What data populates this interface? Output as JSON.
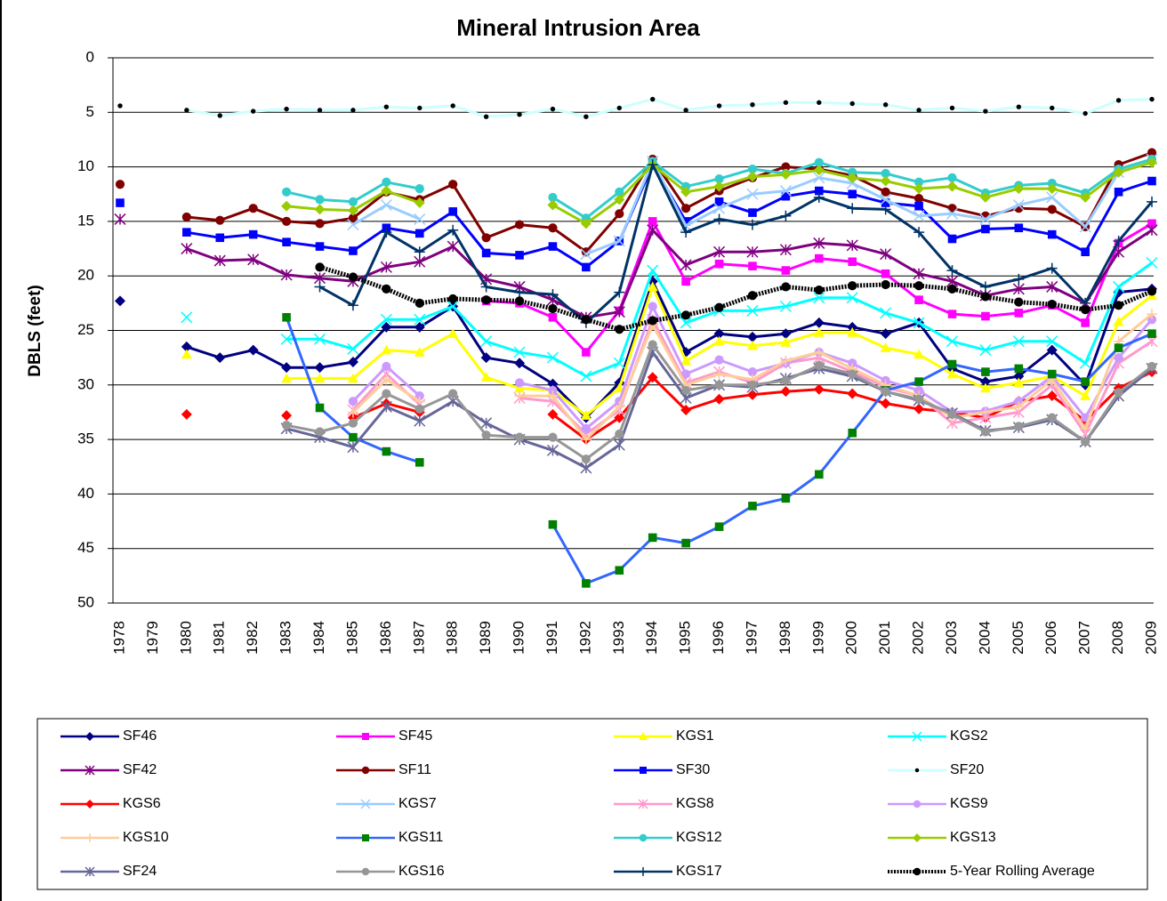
{
  "chart_data": {
    "type": "line",
    "title": "Mineral Intrusion Area",
    "y_label": "DBLS (feet)",
    "categories": [
      "1978",
      "1979",
      "1980",
      "1981",
      "1982",
      "1983",
      "1984",
      "1985",
      "1986",
      "1987",
      "1988",
      "1989",
      "1990",
      "1991",
      "1992",
      "1993",
      "1994",
      "1995",
      "1996",
      "1997",
      "1998",
      "1999",
      "2000",
      "2001",
      "2002",
      "2003",
      "2004",
      "2005",
      "2006",
      "2007",
      "2008",
      "2009"
    ],
    "ylim": [
      0,
      50
    ],
    "y_inverted": true,
    "yticks": [
      0,
      5,
      10,
      15,
      20,
      25,
      30,
      35,
      40,
      45,
      50
    ],
    "grid": true,
    "legend": "bottom",
    "series": [
      {
        "name": "SF46",
        "color": "#000080",
        "marker": "diamond",
        "values": [
          22.3,
          null,
          26.5,
          27.5,
          26.8,
          28.4,
          28.4,
          27.9,
          24.7,
          24.7,
          22.8,
          27.5,
          28.0,
          29.9,
          33.0,
          29.8,
          20.5,
          27.0,
          25.3,
          25.6,
          25.3,
          24.3,
          24.7,
          25.3,
          24.3,
          28.5,
          29.7,
          29.2,
          26.8,
          30.0,
          21.5,
          21.2
        ]
      },
      {
        "name": "SF45",
        "color": "#ff00ff",
        "marker": "square",
        "values": [
          null,
          null,
          null,
          null,
          null,
          null,
          null,
          null,
          null,
          null,
          null,
          22.3,
          22.5,
          23.8,
          27.0,
          23.2,
          15.0,
          20.5,
          18.9,
          19.1,
          19.5,
          18.4,
          18.7,
          19.8,
          22.2,
          23.5,
          23.7,
          23.4,
          22.7,
          24.3,
          17.0,
          15.2
        ]
      },
      {
        "name": "KGS1",
        "color": "#ffff00",
        "marker": "triangle",
        "values": [
          null,
          null,
          27.2,
          null,
          null,
          29.4,
          29.4,
          29.4,
          26.8,
          27.0,
          25.3,
          29.3,
          30.3,
          30.5,
          32.8,
          30.3,
          21.0,
          27.8,
          26.0,
          26.4,
          26.1,
          25.2,
          25.2,
          26.6,
          27.2,
          29.0,
          30.3,
          29.8,
          29.2,
          31.0,
          24.2,
          21.8
        ]
      },
      {
        "name": "KGS2",
        "color": "#00ffff",
        "marker": "x",
        "values": [
          null,
          null,
          23.8,
          null,
          null,
          25.8,
          25.8,
          26.7,
          24.0,
          24.0,
          22.8,
          26.0,
          27.0,
          27.5,
          29.2,
          28.0,
          19.5,
          24.3,
          23.2,
          23.2,
          22.8,
          22.0,
          22.0,
          23.4,
          24.3,
          26.0,
          26.8,
          26.0,
          26.0,
          28.0,
          21.0,
          18.8
        ]
      },
      {
        "name": "SF42",
        "color": "#800080",
        "marker": "asterisk",
        "values": [
          14.8,
          null,
          17.5,
          18.6,
          18.5,
          19.9,
          20.2,
          20.5,
          19.2,
          18.7,
          17.3,
          20.3,
          21.0,
          22.2,
          23.8,
          23.3,
          15.8,
          19.0,
          17.8,
          17.8,
          17.6,
          17.0,
          17.2,
          18.0,
          19.8,
          20.5,
          21.8,
          21.2,
          21.0,
          22.5,
          17.8,
          15.8
        ]
      },
      {
        "name": "SF11",
        "color": "#800000",
        "marker": "circle",
        "values": [
          11.6,
          null,
          14.6,
          14.9,
          13.8,
          15.0,
          15.2,
          14.7,
          12.3,
          13.0,
          11.6,
          16.5,
          15.3,
          15.6,
          17.8,
          14.3,
          9.3,
          13.8,
          12.2,
          11.0,
          10.0,
          10.2,
          10.8,
          12.3,
          12.9,
          13.8,
          14.5,
          13.8,
          13.9,
          15.5,
          9.8,
          8.7
        ]
      },
      {
        "name": "SF30",
        "color": "#0000ff",
        "marker": "square",
        "values": [
          13.3,
          null,
          16.0,
          16.5,
          16.2,
          16.9,
          17.3,
          17.7,
          15.6,
          16.1,
          14.1,
          17.9,
          18.1,
          17.3,
          19.2,
          16.8,
          9.8,
          15.0,
          13.2,
          14.2,
          12.7,
          12.2,
          12.5,
          13.3,
          13.6,
          16.6,
          15.7,
          15.6,
          16.2,
          17.8,
          12.3,
          11.3
        ]
      },
      {
        "name": "SF20",
        "color": "#ccffff",
        "marker_color": "#000000",
        "marker": "dot",
        "values": [
          4.4,
          null,
          4.8,
          5.3,
          4.9,
          4.7,
          4.8,
          4.8,
          4.5,
          4.6,
          4.4,
          5.4,
          5.2,
          4.7,
          5.4,
          4.6,
          3.8,
          4.8,
          4.4,
          4.3,
          4.1,
          4.1,
          4.2,
          4.3,
          4.8,
          4.6,
          4.9,
          4.5,
          4.6,
          5.1,
          3.9,
          3.8
        ]
      },
      {
        "name": "KGS6",
        "color": "#ff0000",
        "marker": "diamond",
        "values": [
          null,
          null,
          32.7,
          null,
          null,
          32.8,
          null,
          33.0,
          31.7,
          32.5,
          null,
          null,
          null,
          32.7,
          35.0,
          33.0,
          29.3,
          32.3,
          31.3,
          30.9,
          30.6,
          30.4,
          30.8,
          31.7,
          32.2,
          32.5,
          33.0,
          31.5,
          31.0,
          33.3,
          30.3,
          28.8
        ]
      },
      {
        "name": "KGS7",
        "color": "#99ccff",
        "marker": "x",
        "values": [
          null,
          null,
          null,
          null,
          null,
          null,
          null,
          15.3,
          13.5,
          14.8,
          null,
          null,
          null,
          null,
          18.0,
          16.8,
          9.5,
          15.4,
          13.8,
          12.5,
          12.2,
          11.0,
          11.5,
          13.0,
          14.5,
          14.3,
          14.8,
          13.5,
          12.8,
          15.5,
          10.5,
          9.3
        ]
      },
      {
        "name": "KGS8",
        "color": "#ff99cc",
        "marker": "asterisk",
        "values": [
          null,
          null,
          null,
          null,
          null,
          null,
          null,
          32.3,
          29.0,
          31.8,
          null,
          null,
          31.2,
          31.5,
          34.5,
          32.3,
          24.0,
          29.8,
          28.8,
          29.8,
          28.0,
          27.5,
          28.8,
          30.2,
          31.0,
          33.5,
          33.0,
          32.5,
          30.0,
          34.5,
          28.0,
          26.0
        ]
      },
      {
        "name": "KGS9",
        "color": "#cc99ff",
        "marker": "circle",
        "values": [
          null,
          null,
          null,
          null,
          null,
          null,
          null,
          31.5,
          28.3,
          31.0,
          null,
          null,
          29.8,
          30.5,
          34.0,
          31.5,
          22.8,
          29.0,
          27.7,
          28.8,
          28.0,
          27.0,
          28.0,
          29.6,
          30.5,
          32.5,
          32.4,
          31.5,
          29.2,
          33.0,
          27.5,
          24.0
        ]
      },
      {
        "name": "KGS10",
        "color": "#ffcc99",
        "marker": "plus",
        "values": [
          null,
          null,
          null,
          null,
          null,
          null,
          null,
          32.5,
          29.5,
          31.5,
          null,
          null,
          31.0,
          31.0,
          35.0,
          32.0,
          24.5,
          30.0,
          29.0,
          29.5,
          27.8,
          27.0,
          28.5,
          30.0,
          31.0,
          33.0,
          32.5,
          32.0,
          29.5,
          34.0,
          26.0,
          23.5
        ]
      },
      {
        "name": "KGS11",
        "color": "#3366ff",
        "marker_color": "#008000",
        "marker": "square",
        "values": [
          null,
          null,
          null,
          null,
          null,
          23.8,
          32.1,
          34.8,
          36.1,
          37.1,
          null,
          null,
          null,
          42.8,
          48.2,
          47.0,
          44.0,
          44.5,
          43.0,
          41.1,
          40.4,
          38.2,
          34.4,
          30.5,
          29.7,
          28.1,
          28.8,
          28.5,
          29.0,
          29.7,
          26.6,
          25.3
        ]
      },
      {
        "name": "KGS12",
        "color": "#33cccc",
        "marker": "circle",
        "values": [
          null,
          null,
          null,
          null,
          null,
          12.3,
          13.0,
          13.2,
          11.4,
          12.0,
          null,
          null,
          null,
          12.8,
          14.7,
          12.3,
          9.5,
          11.8,
          11.1,
          10.2,
          10.6,
          9.6,
          10.5,
          10.6,
          11.4,
          11.0,
          12.4,
          11.7,
          11.5,
          12.4,
          10.2,
          9.3
        ]
      },
      {
        "name": "KGS13",
        "color": "#99cc00",
        "marker": "diamond",
        "values": [
          null,
          null,
          null,
          null,
          null,
          13.6,
          13.9,
          14.0,
          12.2,
          13.3,
          null,
          null,
          null,
          13.5,
          15.2,
          13.0,
          9.8,
          12.3,
          11.8,
          10.9,
          10.7,
          10.3,
          11.0,
          11.3,
          12.0,
          11.8,
          12.8,
          12.0,
          12.0,
          12.8,
          10.5,
          9.6
        ]
      },
      {
        "name": "SF24",
        "color": "#666699",
        "marker": "asterisk",
        "values": [
          null,
          null,
          null,
          null,
          null,
          34.0,
          34.8,
          35.7,
          32.0,
          33.3,
          31.5,
          33.5,
          35.0,
          36.0,
          37.6,
          35.5,
          27.0,
          31.2,
          30.0,
          30.2,
          29.4,
          28.5,
          29.2,
          30.6,
          31.4,
          32.6,
          34.2,
          33.9,
          33.2,
          35.2,
          31.0,
          28.5
        ]
      },
      {
        "name": "KGS16",
        "color": "#969696",
        "marker": "circle",
        "values": [
          null,
          null,
          null,
          null,
          null,
          33.7,
          34.3,
          33.5,
          30.8,
          32.2,
          30.8,
          34.6,
          34.8,
          34.8,
          36.8,
          34.5,
          26.3,
          30.5,
          30.0,
          30.0,
          29.6,
          28.2,
          29.0,
          30.6,
          31.3,
          32.7,
          34.3,
          33.8,
          33.0,
          35.2,
          30.7,
          28.3
        ]
      },
      {
        "name": "KGS17",
        "color": "#003366",
        "marker": "plus",
        "values": [
          null,
          null,
          null,
          null,
          null,
          null,
          21.0,
          22.7,
          16.0,
          17.8,
          15.8,
          21.0,
          21.5,
          21.7,
          24.3,
          21.5,
          9.8,
          16.0,
          14.8,
          15.3,
          14.5,
          12.8,
          13.8,
          13.9,
          16.0,
          19.5,
          21.0,
          20.3,
          19.3,
          22.5,
          16.8,
          13.2
        ]
      },
      {
        "name": "5-Year Rolling Average",
        "color": "#000000",
        "marker": "circle",
        "dashed": true,
        "values": [
          null,
          null,
          null,
          null,
          null,
          null,
          19.2,
          20.1,
          21.2,
          22.5,
          22.1,
          22.2,
          22.3,
          23.0,
          24.0,
          24.9,
          24.1,
          23.6,
          22.9,
          21.8,
          21.0,
          21.3,
          20.9,
          20.8,
          20.9,
          21.2,
          21.9,
          22.4,
          22.6,
          23.1,
          22.7,
          21.4
        ]
      }
    ]
  }
}
